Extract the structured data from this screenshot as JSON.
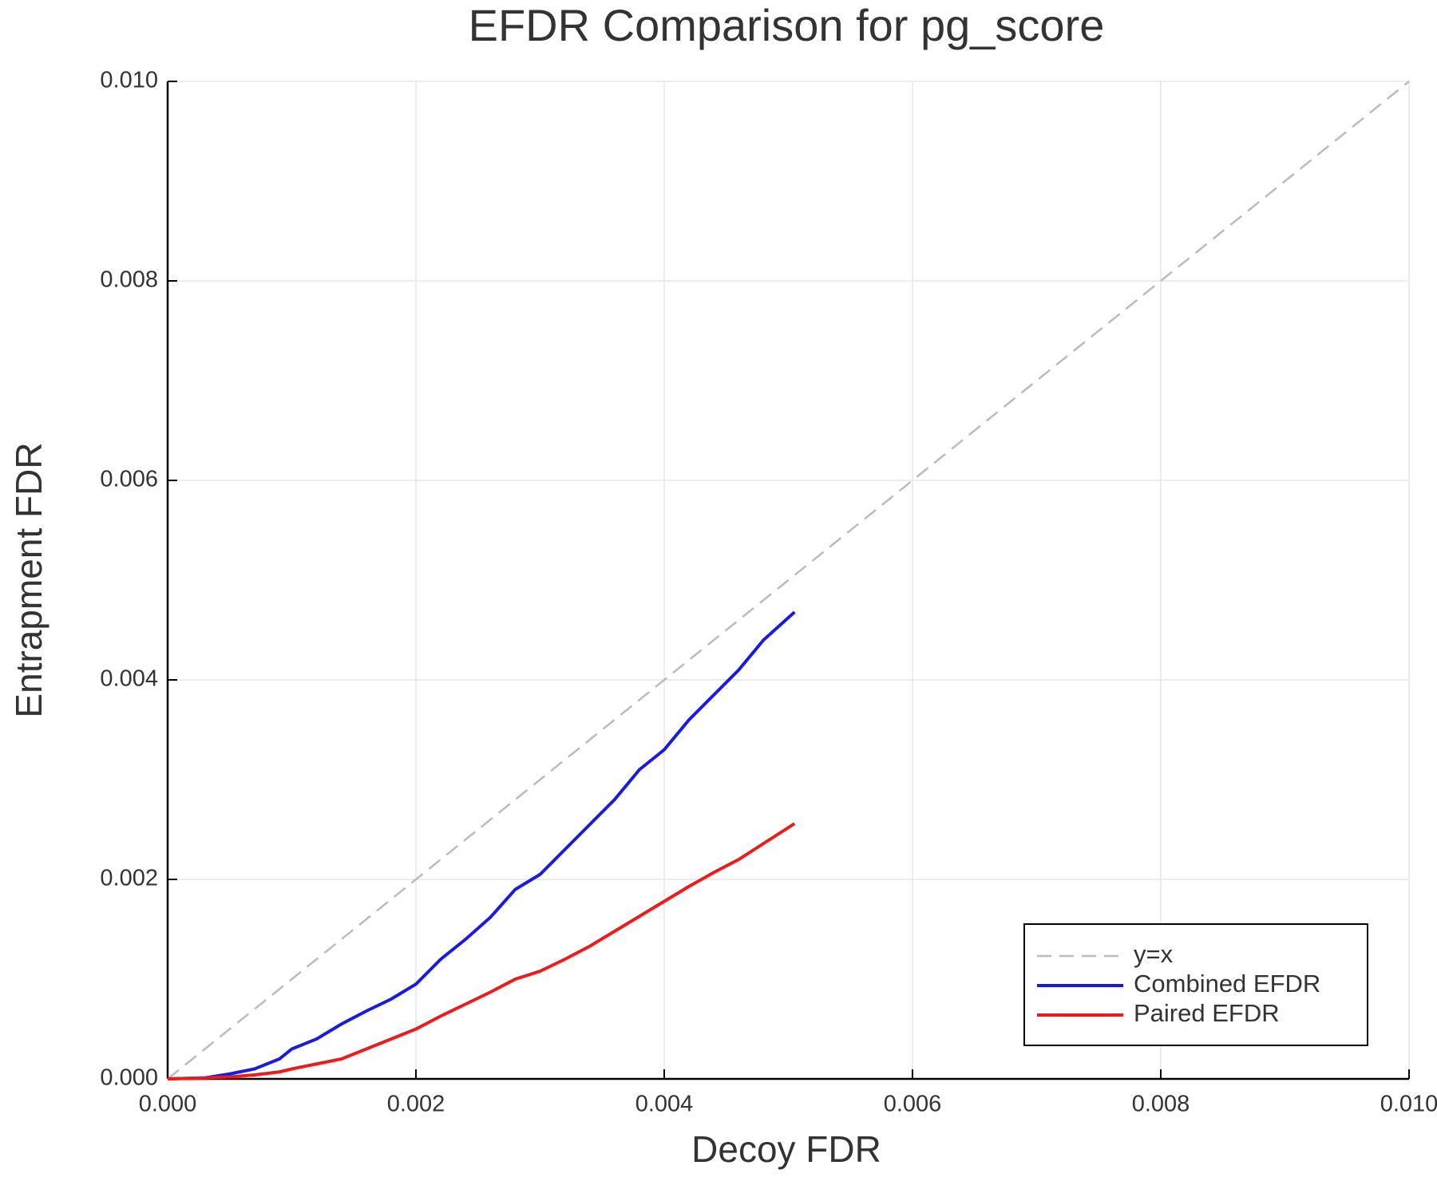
{
  "chart_data": {
    "type": "line",
    "title": "EFDR Comparison for pg_score",
    "x_label": "Decoy FDR",
    "y_label": "Entrapment FDR",
    "x": [
      0,
      0.0003,
      0.0005,
      0.0007,
      0.0009,
      0.001,
      0.0012,
      0.0014,
      0.0016,
      0.0018,
      0.002,
      0.0022,
      0.0024,
      0.0026,
      0.0028,
      0.003,
      0.0032,
      0.0034,
      0.0036,
      0.0038,
      0.004,
      0.0042,
      0.0044,
      0.0046,
      0.0048,
      0.00505,
      0.006,
      0.008,
      0.01
    ],
    "series": [
      {
        "name": "y=x",
        "color": "#bbbbbb",
        "style": "dashed",
        "values": [
          0,
          0.0003,
          0.0005,
          0.0007,
          0.0009,
          0.001,
          0.0012,
          0.0014,
          0.0016,
          0.0018,
          0.002,
          0.0022,
          0.0024,
          0.0026,
          0.0028,
          0.003,
          0.0032,
          0.0034,
          0.0036,
          0.0038,
          0.004,
          0.0042,
          0.0044,
          0.0046,
          0.0048,
          0.00505,
          0.006,
          0.008,
          0.01
        ]
      },
      {
        "name": "Combined EFDR",
        "color": "#1a1ae6",
        "style": "solid",
        "values": [
          0,
          1e-05,
          5e-05,
          0.0001,
          0.0002,
          0.0003,
          0.0004,
          0.00055,
          0.00068,
          0.0008,
          0.00095,
          0.0012,
          0.0014,
          0.00162,
          0.0019,
          0.00205,
          0.0023,
          0.00255,
          0.0028,
          0.0031,
          0.0033,
          0.0036,
          0.00385,
          0.0041,
          0.0044,
          0.00468,
          null,
          null,
          null
        ]
      },
      {
        "name": "Paired EFDR",
        "color": "#f01a1a",
        "style": "solid",
        "values": [
          0,
          1e-05,
          2e-05,
          4e-05,
          7e-05,
          0.0001,
          0.00015,
          0.0002,
          0.0003,
          0.0004,
          0.0005,
          0.00063,
          0.00075,
          0.00087,
          0.001,
          0.00108,
          0.0012,
          0.00133,
          0.00148,
          0.00163,
          0.00178,
          0.00193,
          0.00207,
          0.0022,
          0.00236,
          0.00256,
          null,
          null,
          null
        ]
      }
    ],
    "xlim": [
      0,
      0.01
    ],
    "ylim": [
      0,
      0.01
    ],
    "xticks": [
      {
        "value": 0,
        "label": "0.000"
      },
      {
        "value": 0.002,
        "label": "0.002"
      },
      {
        "value": 0.004,
        "label": "0.004"
      },
      {
        "value": 0.006,
        "label": "0.006"
      },
      {
        "value": 0.008,
        "label": "0.008"
      },
      {
        "value": 0.01,
        "label": "0.010"
      }
    ],
    "yticks": [
      {
        "value": 0,
        "label": "0.000"
      },
      {
        "value": 0.002,
        "label": "0.002"
      },
      {
        "value": 0.004,
        "label": "0.004"
      },
      {
        "value": 0.006,
        "label": "0.006"
      },
      {
        "value": 0.008,
        "label": "0.008"
      },
      {
        "value": 0.01,
        "label": "0.010"
      }
    ],
    "grid": true,
    "legend": "bottom-right"
  }
}
